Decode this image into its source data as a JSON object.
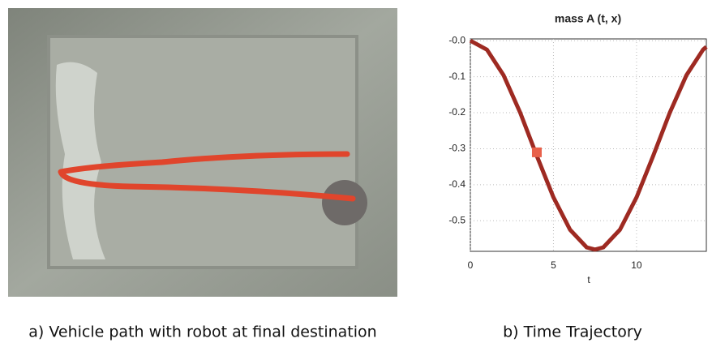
{
  "chart_data": {
    "type": "line",
    "title": "mass A (t, x)",
    "xlabel": "t",
    "x": [
      0,
      1,
      2,
      3,
      4,
      5,
      6,
      7,
      7.5,
      8,
      9,
      10,
      11,
      12,
      13,
      14,
      14.2
    ],
    "series": [
      {
        "color": "#9e2a22",
        "values": [
          0,
          -0.025,
          -0.096,
          -0.2,
          -0.32,
          -0.435,
          -0.525,
          -0.574,
          -0.58,
          -0.574,
          -0.525,
          -0.435,
          -0.32,
          -0.2,
          -0.096,
          -0.025,
          -0.017
        ]
      }
    ],
    "marker": {
      "x": 4,
      "y": -0.31,
      "color": "#e8604a"
    },
    "xlim": [
      0,
      14.2
    ],
    "ylim": [
      -0.585,
      0.005
    ],
    "xticks": [
      0,
      5,
      10
    ],
    "yticks": [
      {
        "value": 0,
        "label": "-0.0"
      },
      -0.1,
      -0.2,
      -0.3,
      -0.4,
      -0.5
    ],
    "grid": true
  },
  "captions": [
    "a) Vehicle path with robot at final destination",
    "b) Time Trajectory"
  ]
}
